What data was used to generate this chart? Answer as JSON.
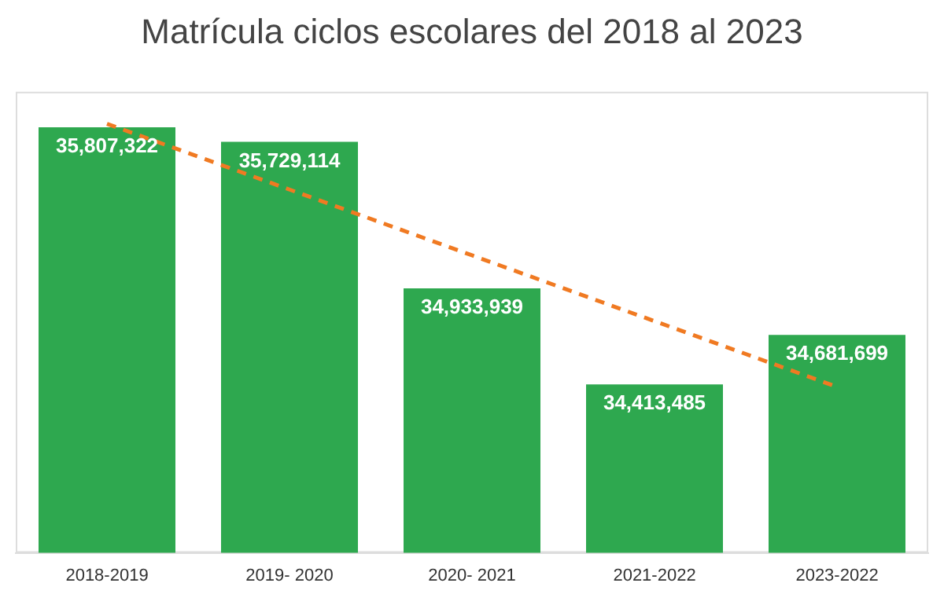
{
  "chart_data": {
    "type": "bar",
    "title": "Matrícula ciclos escolares del 2018 al 2023",
    "categories": [
      "2018-2019",
      "2019- 2020",
      "2020- 2021",
      "2021-2022",
      "2023-2022"
    ],
    "series": [
      {
        "color": "#2ea84f",
        "values": [
          35807322,
          35729114,
          34933939,
          34413485,
          34681699
        ],
        "value_labels": [
          "35,807,322",
          "35,729,114",
          "34,933,939",
          "34,413,485",
          "34,681,699"
        ]
      },
      {
        "type": "line",
        "color": "#f07a22",
        "line_style": "dashed",
        "marker": "none",
        "values": [
          35826487,
          35469800,
          35113112,
          34756424,
          34399737
        ]
      }
    ],
    "ylim": [
      33500000,
      36000000
    ],
    "grid": false,
    "legend": false
  }
}
